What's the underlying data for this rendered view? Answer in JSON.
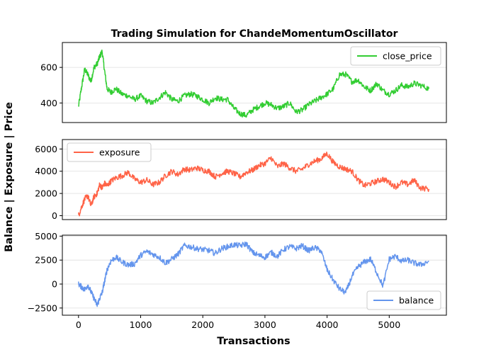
{
  "figure": {
    "title": "Trading Simulation for ChandeMomentumOscillator",
    "xlabel": "Transactions",
    "ylabel": "Balance | Exposure | Price"
  },
  "chart_data": [
    {
      "type": "line",
      "series": [
        {
          "name": "close_price",
          "color": "#32cd32",
          "x": [
            0,
            50,
            100,
            150,
            200,
            250,
            300,
            340,
            380,
            420,
            460,
            520,
            600,
            700,
            800,
            900,
            1000,
            1100,
            1200,
            1300,
            1400,
            1500,
            1600,
            1700,
            1800,
            1900,
            2000,
            2100,
            2200,
            2300,
            2400,
            2500,
            2600,
            2700,
            2800,
            2900,
            3000,
            3100,
            3200,
            3300,
            3400,
            3500,
            3600,
            3700,
            3800,
            3900,
            4000,
            4100,
            4200,
            4300,
            4400,
            4500,
            4600,
            4700,
            4800,
            4900,
            5000,
            5100,
            5200,
            5300,
            5400,
            5500,
            5640
          ],
          "y": [
            380,
            490,
            590,
            560,
            520,
            600,
            620,
            660,
            690,
            580,
            480,
            460,
            480,
            450,
            440,
            420,
            440,
            410,
            400,
            430,
            460,
            420,
            410,
            440,
            450,
            440,
            420,
            400,
            430,
            420,
            420,
            370,
            340,
            330,
            360,
            380,
            400,
            390,
            370,
            380,
            400,
            350,
            360,
            390,
            410,
            430,
            450,
            480,
            560,
            560,
            520,
            530,
            490,
            470,
            510,
            470,
            450,
            470,
            500,
            490,
            510,
            500,
            480
          ]
        }
      ],
      "ylim": [
        290,
        740
      ],
      "yticks": [
        400,
        600
      ],
      "legend": "top-right"
    },
    {
      "type": "line",
      "series": [
        {
          "name": "exposure",
          "color": "#ff6347",
          "x": [
            0,
            50,
            100,
            150,
            200,
            250,
            300,
            340,
            380,
            420,
            460,
            520,
            600,
            700,
            800,
            900,
            1000,
            1100,
            1200,
            1300,
            1400,
            1500,
            1600,
            1700,
            1800,
            1900,
            2000,
            2100,
            2200,
            2300,
            2400,
            2500,
            2600,
            2700,
            2800,
            2900,
            3000,
            3100,
            3200,
            3300,
            3400,
            3500,
            3600,
            3700,
            3800,
            3900,
            4000,
            4100,
            4200,
            4300,
            4400,
            4500,
            4600,
            4700,
            4800,
            4900,
            5000,
            5100,
            5200,
            5300,
            5400,
            5500,
            5640
          ],
          "y": [
            0,
            800,
            1500,
            1800,
            900,
            1700,
            2000,
            2800,
            2500,
            2900,
            2700,
            3100,
            3400,
            3600,
            3900,
            3300,
            3000,
            3200,
            2800,
            3000,
            3600,
            4000,
            3700,
            4200,
            4100,
            4300,
            4100,
            4000,
            3500,
            3800,
            4000,
            3800,
            3500,
            3900,
            4100,
            4500,
            4700,
            5200,
            4400,
            4700,
            4300,
            4000,
            4200,
            4600,
            4900,
            5100,
            5600,
            4800,
            4400,
            4200,
            4000,
            3200,
            2700,
            2900,
            3100,
            3300,
            3000,
            2600,
            3000,
            2800,
            3200,
            2500,
            2400
          ]
        }
      ],
      "ylim": [
        -350,
        6850
      ],
      "yticks": [
        0,
        2000,
        4000,
        6000
      ],
      "legend": "top-left"
    },
    {
      "type": "line",
      "series": [
        {
          "name": "balance",
          "color": "#6495ed",
          "x": [
            0,
            50,
            100,
            150,
            200,
            250,
            300,
            340,
            380,
            420,
            460,
            520,
            600,
            700,
            800,
            900,
            1000,
            1100,
            1200,
            1300,
            1400,
            1500,
            1600,
            1700,
            1800,
            1900,
            2000,
            2100,
            2200,
            2300,
            2400,
            2500,
            2600,
            2700,
            2800,
            2900,
            3000,
            3100,
            3200,
            3300,
            3400,
            3500,
            3600,
            3700,
            3800,
            3900,
            4000,
            4100,
            4200,
            4300,
            4400,
            4500,
            4600,
            4700,
            4800,
            4900,
            5000,
            5100,
            5200,
            5300,
            5400,
            5500,
            5640
          ],
          "y": [
            0,
            -300,
            -600,
            -100,
            -800,
            -1500,
            -2200,
            -1500,
            -900,
            300,
            1500,
            2400,
            2800,
            2300,
            2000,
            2100,
            3000,
            3400,
            3100,
            2800,
            2200,
            2600,
            3100,
            4000,
            3900,
            3700,
            3600,
            3500,
            3200,
            3700,
            3900,
            4100,
            4000,
            4200,
            3300,
            3000,
            2800,
            3300,
            2900,
            3600,
            3900,
            3700,
            4000,
            3500,
            3800,
            3500,
            1500,
            400,
            -500,
            -900,
            800,
            1800,
            2300,
            2600,
            1200,
            -200,
            2600,
            2900,
            2400,
            2500,
            2200,
            2000,
            2400
          ]
        }
      ],
      "ylim": [
        -3250,
        5100
      ],
      "yticks": [
        -2500,
        0,
        2500,
        5000
      ],
      "legend": "bottom-right"
    }
  ],
  "shared_x": {
    "xlim": [
      -260,
      5920
    ],
    "xticks": [
      0,
      1000,
      2000,
      3000,
      4000,
      5000
    ]
  }
}
